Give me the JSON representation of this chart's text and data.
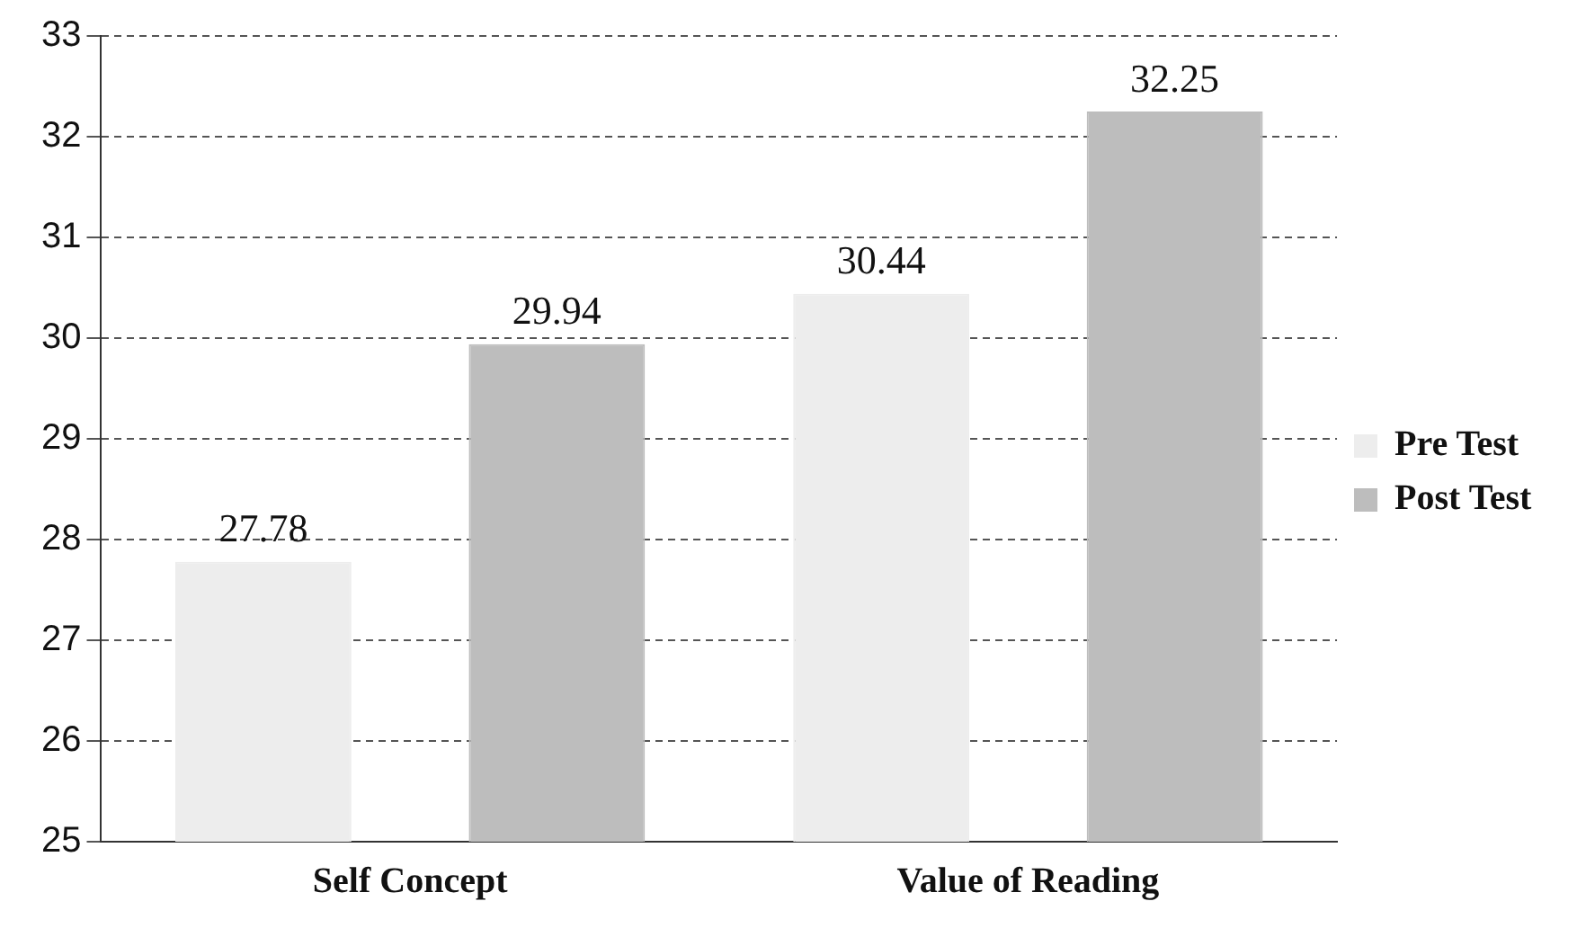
{
  "chart_data": {
    "type": "bar",
    "categories": [
      "Self Concept",
      "Value of Reading"
    ],
    "series": [
      {
        "name": "Pre Test",
        "color": "#ededed",
        "values": [
          27.78,
          30.44
        ]
      },
      {
        "name": "Post Test",
        "color": "#bdbdbd",
        "values": [
          29.94,
          32.25
        ]
      }
    ],
    "ylim": [
      25,
      33
    ],
    "yticks": [
      25,
      26,
      27,
      28,
      29,
      30,
      31,
      32,
      33
    ],
    "grid": "y",
    "legend": "right",
    "data_labels": true
  }
}
